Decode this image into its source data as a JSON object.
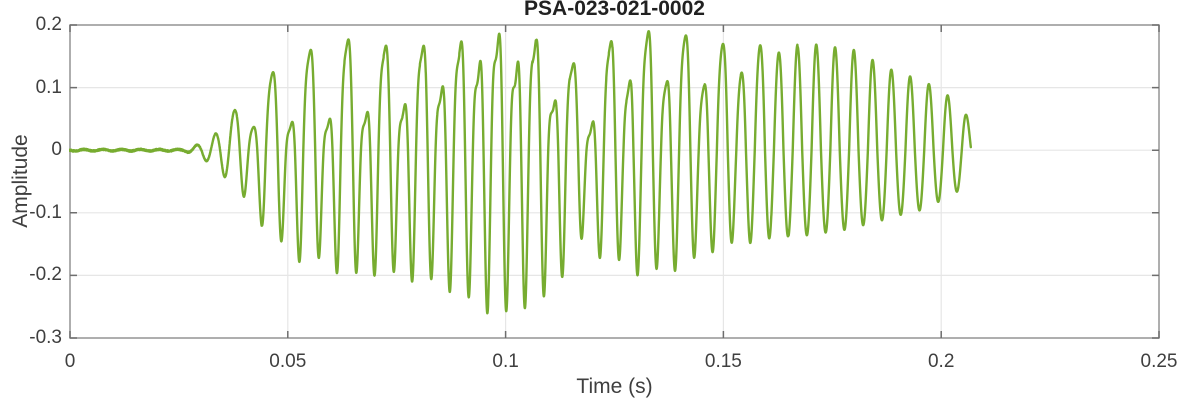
{
  "chart_data": {
    "type": "line",
    "title": "PSA-023-021-0002",
    "xlabel": "Time (s)",
    "ylabel": "Amplitude",
    "xlim": [
      0,
      0.25
    ],
    "ylim": [
      -0.3,
      0.2
    ],
    "xticks": [
      0,
      0.05,
      0.1,
      0.15,
      0.2,
      0.25
    ],
    "xtick_labels": [
      "0",
      "0.05",
      "0.1",
      "0.15",
      "0.2",
      "0.25"
    ],
    "yticks": [
      0.2,
      0.1,
      0,
      -0.1,
      -0.2,
      -0.3
    ],
    "ytick_labels": [
      "0.2",
      "0.1",
      "0",
      "-0.1",
      "-0.2",
      "-0.3"
    ],
    "grid": true,
    "legend": null,
    "line_color": "#77AC30",
    "line_width": 2.4,
    "axis_color": "#949494",
    "tick_mark_color": "#6e6e6e",
    "grid_color": "#e6e6e6",
    "label_color": "#3f3f3f",
    "title_color": "#212121",
    "background_color": "#ffffff",
    "signal": {
      "description": "burst waveform: quiet noise floor, onset ~0.028 s, max upper peak ~0.195, deepest trough ~-0.265 near t=0.098 s, amplitude notch near t=0.118 s, smooth decaying sine tail ending t=0.2068 s",
      "t_start": 0,
      "t_end": 0.2068,
      "carrier_hz": 232,
      "subharmonic_phase": 0.7,
      "harmonic2_phase": 1.9,
      "upper_envelope": [
        [
          0,
          0.0013
        ],
        [
          0.026,
          0.0013
        ],
        [
          0.028,
          0.005
        ],
        [
          0.03,
          0.011
        ],
        [
          0.032,
          0.018
        ],
        [
          0.034,
          0.03
        ],
        [
          0.036,
          0.05
        ],
        [
          0.038,
          0.065
        ],
        [
          0.04,
          0.085
        ],
        [
          0.043,
          0.1
        ],
        [
          0.046,
          0.12
        ],
        [
          0.05,
          0.15
        ],
        [
          0.055,
          0.16
        ],
        [
          0.06,
          0.17
        ],
        [
          0.065,
          0.18
        ],
        [
          0.07,
          0.17
        ],
        [
          0.075,
          0.165
        ],
        [
          0.08,
          0.17
        ],
        [
          0.085,
          0.165
        ],
        [
          0.09,
          0.175
        ],
        [
          0.094,
          0.19
        ],
        [
          0.098,
          0.185
        ],
        [
          0.102,
          0.19
        ],
        [
          0.106,
          0.18
        ],
        [
          0.11,
          0.165
        ],
        [
          0.114,
          0.15
        ],
        [
          0.118,
          0.12
        ],
        [
          0.122,
          0.165
        ],
        [
          0.126,
          0.185
        ],
        [
          0.13,
          0.195
        ],
        [
          0.134,
          0.19
        ],
        [
          0.138,
          0.185
        ],
        [
          0.142,
          0.18
        ],
        [
          0.146,
          0.175
        ],
        [
          0.15,
          0.17
        ],
        [
          0.155,
          0.165
        ],
        [
          0.16,
          0.17
        ],
        [
          0.165,
          0.165
        ],
        [
          0.17,
          0.17
        ],
        [
          0.175,
          0.165
        ],
        [
          0.18,
          0.16
        ],
        [
          0.184,
          0.145
        ],
        [
          0.188,
          0.13
        ],
        [
          0.192,
          0.12
        ],
        [
          0.196,
          0.11
        ],
        [
          0.2,
          0.095
        ],
        [
          0.203,
          0.08
        ],
        [
          0.2055,
          0.06
        ],
        [
          0.2068,
          0.042
        ]
      ],
      "lower_envelope": [
        [
          0,
          0.0013
        ],
        [
          0.026,
          0.0013
        ],
        [
          0.028,
          0.005
        ],
        [
          0.03,
          0.012
        ],
        [
          0.032,
          0.02
        ],
        [
          0.034,
          0.035
        ],
        [
          0.036,
          0.045
        ],
        [
          0.038,
          0.06
        ],
        [
          0.04,
          0.08
        ],
        [
          0.043,
          0.11
        ],
        [
          0.046,
          0.14
        ],
        [
          0.05,
          0.17
        ],
        [
          0.055,
          0.185
        ],
        [
          0.06,
          0.19
        ],
        [
          0.065,
          0.215
        ],
        [
          0.07,
          0.2
        ],
        [
          0.075,
          0.21
        ],
        [
          0.08,
          0.21
        ],
        [
          0.085,
          0.22
        ],
        [
          0.09,
          0.235
        ],
        [
          0.094,
          0.25
        ],
        [
          0.098,
          0.265
        ],
        [
          0.102,
          0.255
        ],
        [
          0.106,
          0.245
        ],
        [
          0.11,
          0.24
        ],
        [
          0.114,
          0.19
        ],
        [
          0.118,
          0.15
        ],
        [
          0.122,
          0.175
        ],
        [
          0.126,
          0.185
        ],
        [
          0.13,
          0.2
        ],
        [
          0.134,
          0.2
        ],
        [
          0.138,
          0.195
        ],
        [
          0.142,
          0.185
        ],
        [
          0.146,
          0.17
        ],
        [
          0.15,
          0.155
        ],
        [
          0.155,
          0.15
        ],
        [
          0.16,
          0.145
        ],
        [
          0.165,
          0.14
        ],
        [
          0.17,
          0.135
        ],
        [
          0.175,
          0.13
        ],
        [
          0.18,
          0.125
        ],
        [
          0.184,
          0.115
        ],
        [
          0.188,
          0.11
        ],
        [
          0.192,
          0.1
        ],
        [
          0.196,
          0.095
        ],
        [
          0.2,
          0.08
        ],
        [
          0.203,
          0.07
        ],
        [
          0.2055,
          0.055
        ],
        [
          0.2068,
          0.042
        ]
      ],
      "subharmonic_mix": [
        [
          0,
          0
        ],
        [
          0.034,
          0
        ],
        [
          0.04,
          0.35
        ],
        [
          0.048,
          0.45
        ],
        [
          0.06,
          0.45
        ],
        [
          0.075,
          0.35
        ],
        [
          0.085,
          0.2
        ],
        [
          0.092,
          0.12
        ],
        [
          0.105,
          0.12
        ],
        [
          0.112,
          0.3
        ],
        [
          0.118,
          0.5
        ],
        [
          0.124,
          0.3
        ],
        [
          0.132,
          0.15
        ],
        [
          0.14,
          0.25
        ],
        [
          0.15,
          0.18
        ],
        [
          0.158,
          0.08
        ],
        [
          0.166,
          0
        ],
        [
          0.21,
          0
        ]
      ],
      "harmonic2_mix": [
        [
          0,
          0
        ],
        [
          0.034,
          0
        ],
        [
          0.04,
          0.15
        ],
        [
          0.05,
          0.25
        ],
        [
          0.09,
          0.3
        ],
        [
          0.1,
          0.35
        ],
        [
          0.11,
          0.3
        ],
        [
          0.13,
          0.25
        ],
        [
          0.145,
          0.2
        ],
        [
          0.158,
          0.1
        ],
        [
          0.168,
          0
        ],
        [
          0.21,
          0
        ]
      ],
      "noise_level": [
        [
          0,
          0.0012
        ],
        [
          0.027,
          0.0012
        ],
        [
          0.031,
          0.0006
        ],
        [
          0.04,
          0
        ],
        [
          0.21,
          0
        ]
      ]
    }
  }
}
